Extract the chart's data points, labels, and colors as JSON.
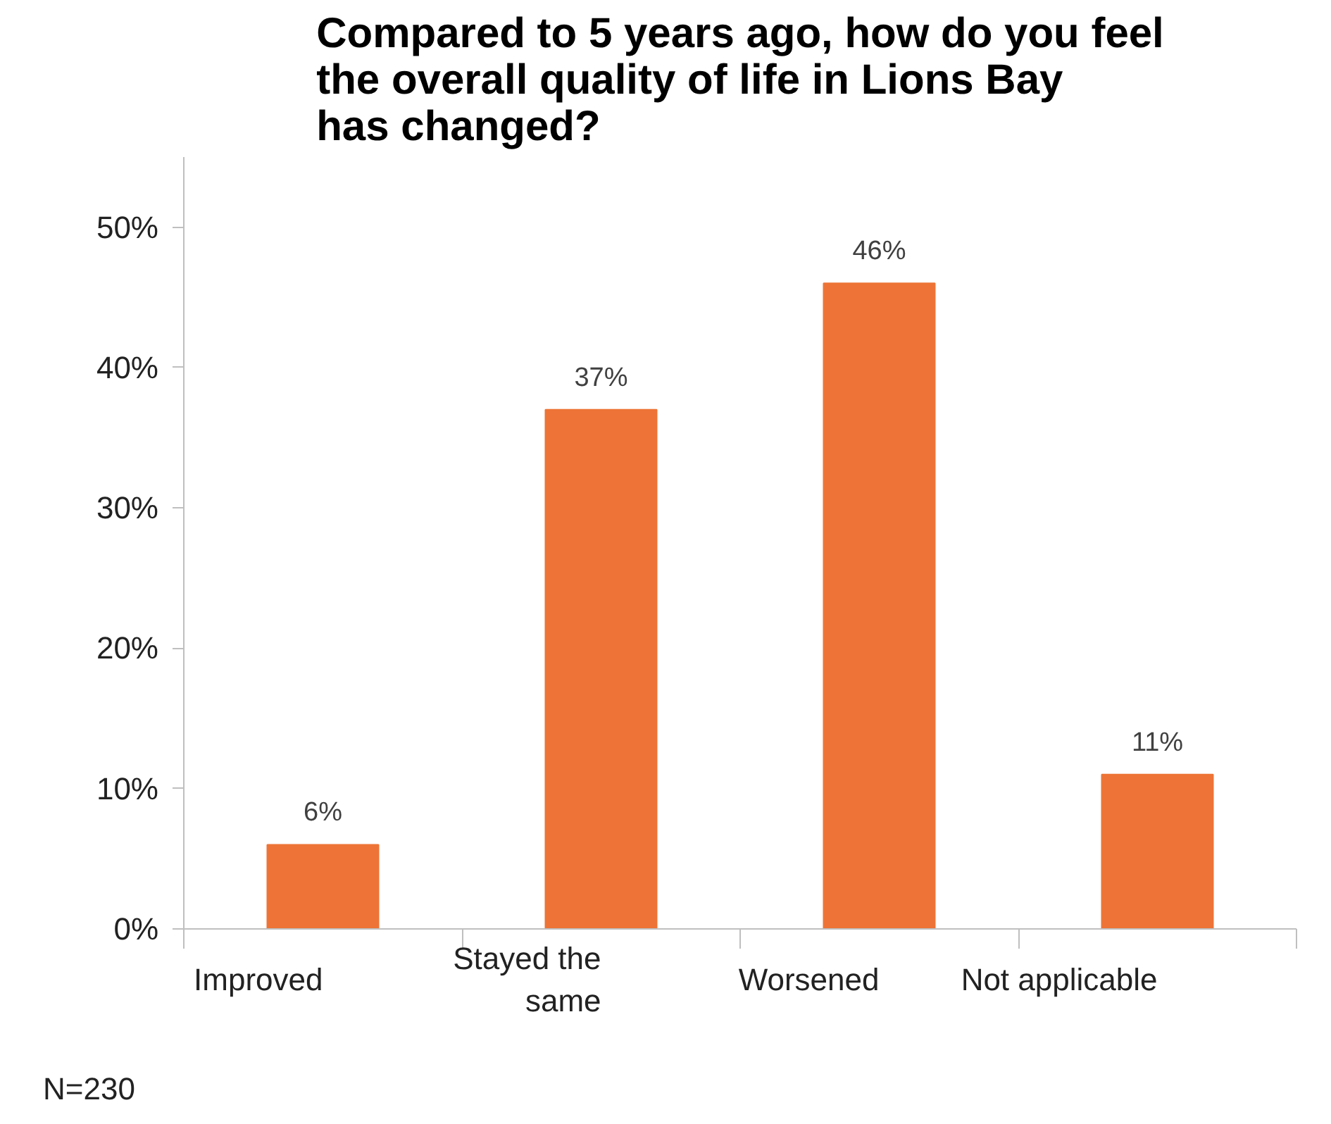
{
  "chart_data": {
    "type": "bar",
    "title": "Compared to 5 years ago, how do you feel the overall quality of life in Lions Bay has changed?",
    "categories": [
      "Improved",
      "Stayed the same",
      "Worsened",
      "Not applicable"
    ],
    "values": [
      6,
      37,
      46,
      11
    ],
    "color": "#ed7436",
    "value_labels": [
      "6%",
      "37%",
      "46%",
      "11%"
    ],
    "ylim": [
      0,
      55
    ],
    "yticks": [
      {
        "value": 0,
        "label": "0%"
      },
      {
        "value": 10,
        "label": "10%"
      },
      {
        "value": 20,
        "label": "20%"
      },
      {
        "value": 30,
        "label": "30%"
      },
      {
        "value": 40,
        "label": "40%"
      },
      {
        "value": 50,
        "label": "50%"
      }
    ],
    "grid": false,
    "annotations": [
      "N=230"
    ]
  }
}
